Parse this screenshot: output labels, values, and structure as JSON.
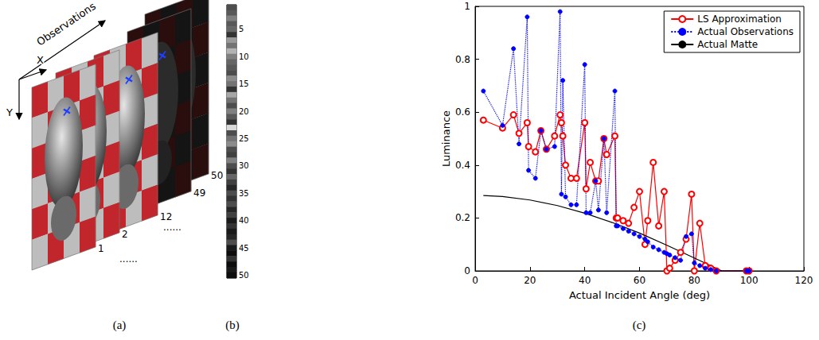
{
  "diagram": {
    "panel": "(a)",
    "arrow_labels": [
      "Observations",
      "X",
      "Y"
    ],
    "frames": [
      "1",
      "2",
      "12",
      "49",
      "50"
    ],
    "ellipsis": "......"
  },
  "chart_data": [
    {
      "type": "heatmap",
      "panel": "(b)",
      "categories": [
        null,
        null,
        null,
        null,
        "5",
        null,
        null,
        null,
        null,
        "10",
        null,
        null,
        null,
        null,
        "15",
        null,
        null,
        null,
        null,
        "20",
        null,
        null,
        null,
        null,
        "25",
        null,
        null,
        null,
        null,
        "30",
        null,
        null,
        null,
        null,
        "35",
        null,
        null,
        null,
        null,
        "40",
        null,
        null,
        null,
        null,
        "45",
        null,
        null,
        null,
        null,
        "50"
      ],
      "values": [
        0.3,
        0.35,
        0.5,
        0.35,
        0.4,
        0.2,
        0.6,
        0.45,
        0.7,
        0.5,
        0.4,
        0.35,
        0.3,
        0.55,
        0.45,
        0.2,
        0.65,
        0.45,
        0.3,
        0.5,
        0.35,
        0.2,
        0.85,
        0.3,
        0.45,
        0.55,
        0.3,
        0.25,
        0.5,
        0.3,
        0.2,
        0.4,
        0.25,
        0.15,
        0.3,
        0.2,
        0.3,
        0.15,
        0.25,
        0.1,
        0.2,
        0.1,
        0.15,
        0.3,
        0.1,
        0.05,
        0.2,
        0.05,
        0.1,
        0.05
      ],
      "zlim": [
        0,
        1
      ]
    },
    {
      "type": "line",
      "panel": "(c)",
      "x_label": "Actual Incident Angle (deg)",
      "y_label": "Luminance",
      "xlim": [
        0,
        120
      ],
      "xticks": [
        0,
        20,
        40,
        60,
        80,
        100,
        120
      ],
      "ylim": [
        0,
        1
      ],
      "yticks": [
        0,
        0.2,
        0.4,
        0.6,
        0.8,
        1
      ],
      "grid": false,
      "legend": "upper right",
      "series": [
        {
          "name": "LS Approximation",
          "color": "#ff0000",
          "marker": "circle_open",
          "line_style": "solid",
          "x": [
            3,
            10,
            14,
            16,
            19,
            19.5,
            22,
            24,
            26,
            29,
            31,
            31.5,
            32,
            33,
            35,
            37,
            40,
            40.5,
            42,
            44,
            45,
            47,
            48,
            51,
            51.5,
            52,
            54,
            56,
            58,
            60,
            62,
            63,
            65,
            67,
            69,
            70,
            71,
            73,
            75,
            77,
            79,
            80,
            82,
            84,
            86,
            88,
            99,
            100
          ],
          "values": [
            0.57,
            0.54,
            0.59,
            0.52,
            0.56,
            0.47,
            0.45,
            0.53,
            0.46,
            0.51,
            0.59,
            0.56,
            0.51,
            0.4,
            0.35,
            0.35,
            0.56,
            0.31,
            0.41,
            0.34,
            0.34,
            0.5,
            0.44,
            0.51,
            0.2,
            0.2,
            0.19,
            0.18,
            0.24,
            0.3,
            0.1,
            0.19,
            0.41,
            0.17,
            0.3,
            0,
            0.01,
            0.04,
            0.07,
            0.12,
            0.29,
            0,
            0.18,
            0.02,
            0.01,
            0,
            0,
            0
          ]
        },
        {
          "name": "Actual Observations",
          "color": "#0000ff",
          "marker": "dot",
          "line_style": "dotted",
          "x": [
            3,
            10,
            14,
            16,
            19,
            19.5,
            22,
            24,
            26,
            29,
            31,
            31.5,
            32,
            33,
            35,
            37,
            40,
            40.5,
            42,
            44,
            45,
            47,
            48,
            51,
            51.5,
            52,
            54,
            56,
            58,
            60,
            62,
            63,
            65,
            67,
            69,
            70,
            71,
            73,
            75,
            77,
            79,
            80,
            82,
            84,
            86,
            88,
            99,
            100
          ],
          "values": [
            0.68,
            0.55,
            0.84,
            0.48,
            0.96,
            0.38,
            0.35,
            0.53,
            0.46,
            0.47,
            0.98,
            0.29,
            0.72,
            0.28,
            0.25,
            0.25,
            0.78,
            0.22,
            0.22,
            0.34,
            0.23,
            0.5,
            0.22,
            0.68,
            0.17,
            0.17,
            0.16,
            0.15,
            0.14,
            0.13,
            0.12,
            0.11,
            0.09,
            0.08,
            0.07,
            0.065,
            0.06,
            0.05,
            0.04,
            0.13,
            0.14,
            0.03,
            0.02,
            0.01,
            0.005,
            0,
            0,
            0
          ]
        },
        {
          "name": "Actual Matte",
          "color": "#000000",
          "marker": "none",
          "line_style": "solid",
          "x": [
            3,
            10,
            20,
            30,
            40,
            50,
            60,
            70,
            80,
            90,
            100
          ],
          "values": [
            0.285,
            0.281,
            0.268,
            0.247,
            0.218,
            0.183,
            0.143,
            0.097,
            0.049,
            0,
            0
          ]
        }
      ]
    }
  ]
}
